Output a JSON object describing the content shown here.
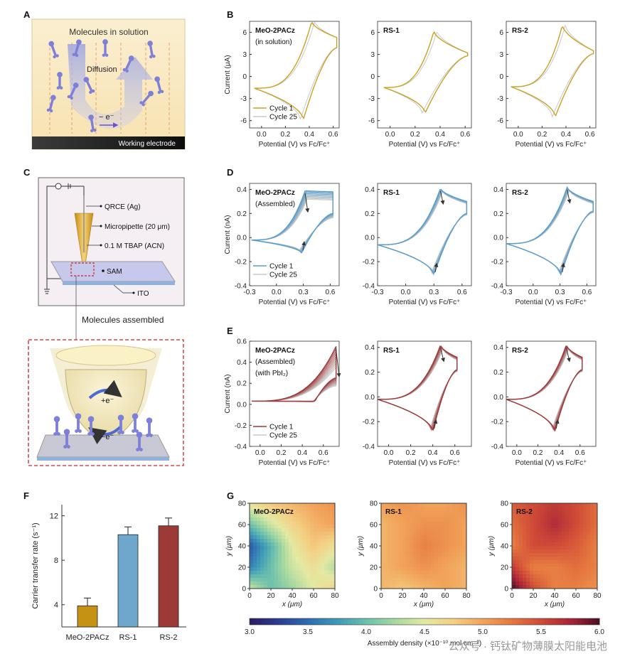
{
  "panel_labels": {
    "a": "A",
    "b": "B",
    "c": "C",
    "d": "D",
    "e": "E",
    "f": "F",
    "g": "G"
  },
  "panel_a": {
    "title": "Molecules in solution",
    "diffusion": "Diffusion",
    "electron": "− e⁻",
    "electrode": "Working electrode"
  },
  "panel_c": {
    "qrce": "QRCE (Ag)",
    "pipette": "Micropipette (20 μm)",
    "electrolyte": "0.1 M TBAP (ACN)",
    "sam": "SAM",
    "ito": "ITO",
    "assembled": "Molecules assembled",
    "plus_e": "+e⁻",
    "minus_e": "−e⁻"
  },
  "watermark": "公众号 · 钙钛矿物薄膜太阳能电池",
  "colors": {
    "gold": "#c9a227",
    "blue": "#5b9ec9",
    "red": "#9e3a3a",
    "grey": "#c8c8c8",
    "bar_gold": "#c69214",
    "bar_blue": "#6fa7cc",
    "bar_red": "#9b3a37"
  },
  "chart_data": [
    {
      "id": "B1",
      "type": "line",
      "title": "MeO-2PACz",
      "subtitle": "(in solution)",
      "xlabel": "Potential (V) vs Fc/Fc⁺",
      "ylabel": "Current (μA)",
      "xlim": [
        -0.1,
        0.65
      ],
      "ylim": [
        -7,
        7.5
      ],
      "xticks": [
        "0.0",
        "0.2",
        "0.4",
        "0.6"
      ],
      "xtick_values": [
        0.0,
        0.2,
        0.4,
        0.6
      ],
      "yticks": [
        "6",
        "3",
        "0",
        "-3",
        "-6"
      ],
      "ytick_values": [
        6,
        3,
        0,
        -3,
        -6
      ],
      "legend": [
        "Cycle 1",
        "Cycle 25"
      ],
      "cv": {
        "x0": -0.06,
        "x1": 0.63,
        "ep": 0.42,
        "ip": 7.5,
        "en": 0.35,
        "in": -5.9,
        "i_start": -1.6,
        "i_end": 4.5,
        "tail_up": 5.3,
        "tail_dn": 3.9,
        "spread": 0
      }
    },
    {
      "id": "B2",
      "type": "line",
      "title": "RS-1",
      "subtitle": "",
      "xlabel": "Potential (V) vs Fc/Fc⁺",
      "ylabel": "",
      "xlim": [
        -0.1,
        0.65
      ],
      "ylim": [
        -7,
        7.5
      ],
      "xticks": [
        "0.0",
        "0.2",
        "0.4",
        "0.6"
      ],
      "xtick_values": [
        0.0,
        0.2,
        0.4,
        0.6
      ],
      "yticks": [
        "6",
        "3",
        "0",
        "-3",
        "-6"
      ],
      "ytick_values": [
        6,
        3,
        0,
        -3,
        -6
      ],
      "legend": [],
      "cv": {
        "x0": -0.05,
        "x1": 0.62,
        "ep": 0.35,
        "ip": 6.2,
        "en": 0.28,
        "in": -5.0,
        "i_start": -1.5,
        "i_end": 3.0,
        "tail_up": 3.2,
        "tail_dn": 2.8,
        "spread": 0
      }
    },
    {
      "id": "B3",
      "type": "line",
      "title": "RS-2",
      "subtitle": "",
      "xlabel": "Potential (V) vs Fc/Fc⁺",
      "ylabel": "",
      "xlim": [
        -0.1,
        0.65
      ],
      "ylim": [
        -7,
        7.5
      ],
      "xticks": [
        "0.0",
        "0.2",
        "0.4",
        "0.6"
      ],
      "xtick_values": [
        0.0,
        0.2,
        0.4,
        0.6
      ],
      "yticks": [
        "6",
        "3",
        "0",
        "-3",
        "-6"
      ],
      "ytick_values": [
        6,
        3,
        0,
        -3,
        -6
      ],
      "legend": [],
      "cv": {
        "x0": -0.06,
        "x1": 0.63,
        "ep": 0.37,
        "ip": 7.0,
        "en": 0.31,
        "in": -5.5,
        "i_start": -1.4,
        "i_end": 3.3,
        "tail_up": 3.5,
        "tail_dn": 3.1,
        "spread": 0
      }
    },
    {
      "id": "D1",
      "type": "line",
      "title": "MeO-2PACz",
      "subtitle": "(Assembled)",
      "xlabel": "Potential (V) vs Fc/Fc⁺",
      "ylabel": "Current (nA)",
      "xlim": [
        -0.3,
        0.7
      ],
      "ylim": [
        -0.4,
        0.45
      ],
      "xticks": [
        "-0.3",
        "0.0",
        "0.3",
        "0.6"
      ],
      "xtick_values": [
        -0.3,
        0.0,
        0.3,
        0.6
      ],
      "yticks": [
        "0.4",
        "0.2",
        "0.0",
        "-0.2",
        "-0.4"
      ],
      "ytick_values": [
        0.4,
        0.2,
        0.0,
        -0.2,
        -0.4
      ],
      "legend": [
        "Cycle 1",
        "Cycle 25"
      ],
      "cv": {
        "x0": -0.28,
        "x1": 0.63,
        "ep": 0.32,
        "ip": 0.39,
        "en": 0.28,
        "in": -0.13,
        "i_start": -0.02,
        "i_end": 0.28,
        "tail_up": 0.38,
        "tail_dn": 0.2,
        "spread": 0.18
      }
    },
    {
      "id": "D2",
      "type": "line",
      "title": "RS-1",
      "subtitle": "",
      "xlabel": "Potential (V) vs Fc/Fc⁺",
      "ylabel": "",
      "xlim": [
        -0.3,
        0.7
      ],
      "ylim": [
        -0.4,
        0.45
      ],
      "xticks": [
        "-0.3",
        "0.0",
        "0.3",
        "0.6"
      ],
      "xtick_values": [
        -0.3,
        0.0,
        0.3,
        0.6
      ],
      "yticks": [
        "0.4",
        "0.2",
        "0.0",
        "-0.2",
        "-0.4"
      ],
      "ytick_values": [
        0.4,
        0.2,
        0.0,
        -0.2,
        -0.4
      ],
      "legend": [],
      "cv": {
        "x0": -0.3,
        "x1": 0.65,
        "ep": 0.37,
        "ip": 0.41,
        "en": 0.3,
        "in": -0.31,
        "i_start": -0.06,
        "i_end": 0.28,
        "tail_up": 0.3,
        "tail_dn": 0.2,
        "spread": 0.06
      }
    },
    {
      "id": "D3",
      "type": "line",
      "title": "RS-2",
      "subtitle": "",
      "xlabel": "Potential (V) vs Fc/Fc⁺",
      "ylabel": "",
      "xlim": [
        -0.3,
        0.7
      ],
      "ylim": [
        -0.4,
        0.45
      ],
      "xticks": [
        "-0.3",
        "0.0",
        "0.3",
        "0.6"
      ],
      "xtick_values": [
        -0.3,
        0.0,
        0.3,
        0.6
      ],
      "yticks": [
        "0.4",
        "0.2",
        "0.0",
        "-0.2",
        "-0.4"
      ],
      "ytick_values": [
        0.4,
        0.2,
        0.0,
        -0.2,
        -0.4
      ],
      "legend": [],
      "cv": {
        "x0": -0.3,
        "x1": 0.67,
        "ep": 0.38,
        "ip": 0.42,
        "en": 0.31,
        "in": -0.31,
        "i_start": -0.05,
        "i_end": 0.27,
        "tail_up": 0.3,
        "tail_dn": 0.22,
        "spread": 0.06
      }
    },
    {
      "id": "E1",
      "type": "line",
      "title": "MeO-2PACz",
      "subtitle": "(Assembled)",
      "subtitle2": "(with PbI₂)",
      "xlabel": "Potential (V) vs Fc/Fc⁺",
      "ylabel": "Current (nA)",
      "xlim": [
        -0.1,
        0.75
      ],
      "ylim": [
        -0.4,
        0.6
      ],
      "xticks": [
        "0.0",
        "0.2",
        "0.4",
        "0.6"
      ],
      "xtick_values": [
        0.0,
        0.2,
        0.4,
        0.6
      ],
      "yticks": [
        "0.6",
        "0.4",
        "0.2",
        "0.0",
        "-0.2",
        "-0.4"
      ],
      "ytick_values": [
        0.6,
        0.4,
        0.2,
        0.0,
        -0.2,
        -0.4
      ],
      "legend": [
        "Cycle 1",
        "Cycle 25"
      ],
      "cv": {
        "x0": -0.08,
        "x1": 0.72,
        "ep": 0.72,
        "ip": 0.55,
        "en": 0.52,
        "in": 0.03,
        "i_start": 0.03,
        "i_end": 0.55,
        "tail_up": 0.55,
        "tail_dn": 0.25,
        "spread": 0.3
      }
    },
    {
      "id": "E2",
      "type": "line",
      "title": "RS-1",
      "subtitle": "",
      "xlabel": "Potential (V) vs Fc/Fc⁺",
      "ylabel": "",
      "xlim": [
        -0.1,
        0.75
      ],
      "ylim": [
        -0.4,
        0.45
      ],
      "xticks": [
        "0.0",
        "0.2",
        "0.4",
        "0.6"
      ],
      "xtick_values": [
        0.0,
        0.2,
        0.4,
        0.6
      ],
      "yticks": [
        "0.4",
        "0.2",
        "0.0",
        "-0.2",
        "-0.4"
      ],
      "ytick_values": [
        0.4,
        0.2,
        0.0,
        -0.2,
        -0.4
      ],
      "legend": [],
      "cv": {
        "x0": -0.1,
        "x1": 0.62,
        "ep": 0.47,
        "ip": 0.42,
        "en": 0.4,
        "in": -0.28,
        "i_start": -0.02,
        "i_end": 0.3,
        "tail_up": 0.32,
        "tail_dn": 0.22,
        "spread": 0.07
      }
    },
    {
      "id": "E3",
      "type": "line",
      "title": "RS-2",
      "subtitle": "",
      "xlabel": "Potential (V) vs Fc/Fc⁺",
      "ylabel": "",
      "xlim": [
        -0.1,
        0.75
      ],
      "ylim": [
        -0.4,
        0.45
      ],
      "xticks": [
        "0.0",
        "0.2",
        "0.4",
        "0.6"
      ],
      "xtick_values": [
        0.0,
        0.2,
        0.4,
        0.6
      ],
      "yticks": [
        "0.4",
        "0.2",
        "0.0",
        "-0.2",
        "-0.4"
      ],
      "ytick_values": [
        0.4,
        0.2,
        0.0,
        -0.2,
        -0.4
      ],
      "legend": [],
      "cv": {
        "x0": -0.1,
        "x1": 0.62,
        "ep": 0.47,
        "ip": 0.42,
        "en": 0.36,
        "in": -0.28,
        "i_start": -0.02,
        "i_end": 0.3,
        "tail_up": 0.32,
        "tail_dn": 0.22,
        "spread": 0.07
      }
    },
    {
      "id": "F",
      "type": "bar",
      "categories": [
        "MeO-2PACz",
        "RS-1",
        "RS-2"
      ],
      "values": [
        3.9,
        10.3,
        11.1
      ],
      "errors": [
        0.7,
        0.7,
        0.7
      ],
      "ylabel": "Carrier transfer rate (s⁻¹)",
      "ylim": [
        2,
        13
      ],
      "yticks": [
        "4",
        "8",
        "12"
      ],
      "ytick_values": [
        4,
        8,
        12
      ]
    },
    {
      "id": "G",
      "type": "heatmap",
      "titles": [
        "MeO-2PACz",
        "RS-1",
        "RS-2"
      ],
      "xlabel": "x (μm)",
      "ylabel": "y (μm)",
      "xticks": [
        "0",
        "20",
        "40",
        "60",
        "80"
      ],
      "yticks": [
        "0",
        "20",
        "40",
        "60",
        "80"
      ],
      "colorbar_label": "Assembly density (×10⁻¹⁰ mol cm⁻²)",
      "colorbar_ticks": [
        "3.0",
        "3.5",
        "4.0",
        "4.5",
        "5.0",
        "5.5",
        "6.0"
      ],
      "clim": [
        3.0,
        6.0
      ],
      "maps": [
        [
          [
            4.6,
            4.8,
            4.9,
            5.0,
            5.1
          ],
          [
            4.0,
            4.4,
            4.7,
            4.9,
            5.0
          ],
          [
            3.4,
            3.9,
            4.5,
            4.8,
            4.6
          ],
          [
            3.6,
            4.0,
            4.4,
            4.6,
            4.3
          ],
          [
            4.4,
            4.0,
            4.2,
            4.5,
            4.7
          ]
        ],
        [
          [
            5.0,
            5.1,
            5.0,
            5.0,
            5.1
          ],
          [
            4.9,
            5.0,
            5.1,
            5.1,
            5.0
          ],
          [
            4.9,
            5.0,
            5.2,
            5.1,
            5.0
          ],
          [
            4.9,
            5.0,
            5.1,
            5.0,
            4.9
          ],
          [
            4.9,
            4.8,
            4.9,
            5.0,
            4.9
          ]
        ],
        [
          [
            5.4,
            5.5,
            5.6,
            5.5,
            5.3
          ],
          [
            5.3,
            5.5,
            5.7,
            5.5,
            5.3
          ],
          [
            5.2,
            5.5,
            5.5,
            5.4,
            5.2
          ],
          [
            5.6,
            5.2,
            5.2,
            5.3,
            5.2
          ],
          [
            6.0,
            5.5,
            5.2,
            5.2,
            5.1
          ]
        ]
      ]
    }
  ]
}
